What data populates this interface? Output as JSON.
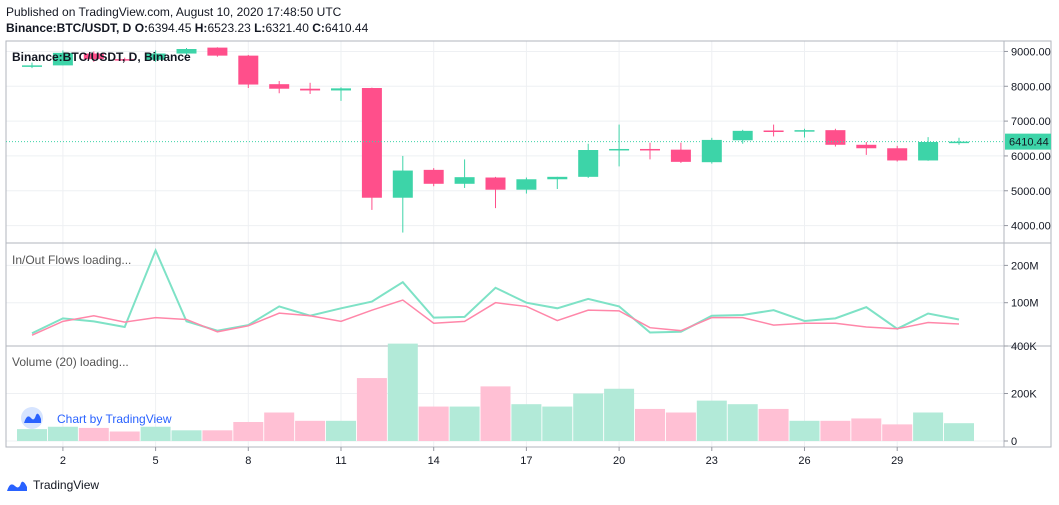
{
  "header": {
    "published": "Published on TradingView.com, August 10, 2020 17:48:50 UTC",
    "symbol": "Binance:BTC/USDT, D",
    "o_label": "O:",
    "o_value": "6394.45",
    "h_label": "H:",
    "h_value": "6523.23",
    "l_label": "L:",
    "l_value": "6321.40",
    "c_label": "C:",
    "c_value": "6410.44"
  },
  "colors": {
    "up": "#3dd4a8",
    "down": "#ff4f8b",
    "up_vol": "#b2ead8",
    "down_vol": "#ffc0d4",
    "flow_up": "#7ee2c6",
    "flow_down": "#ff87a9",
    "grid": "#eef0f3",
    "axis": "#9598a1"
  },
  "chart_data": [
    {
      "type": "candlestick",
      "title": "Binance:BTC/USDT, D, Binance",
      "ylim": [
        3500,
        9300
      ],
      "yticks": [
        "4000.00",
        "5000.00",
        "6000.00",
        "7000.00",
        "8000.00",
        "9000.00"
      ],
      "last_price_label": "6410.44",
      "last_price": 6410.44,
      "x": [
        1,
        2,
        3,
        4,
        5,
        6,
        7,
        8,
        9,
        10,
        11,
        12,
        13,
        14,
        15,
        16,
        17,
        18,
        19,
        20,
        21,
        22,
        23,
        24,
        25,
        26,
        27,
        28,
        29,
        30,
        31
      ],
      "ohlc": [
        [
          8560,
          8680,
          8520,
          8600
        ],
        [
          8600,
          9030,
          8600,
          8960
        ],
        [
          8940,
          9000,
          8700,
          8780
        ],
        [
          8780,
          8820,
          8720,
          8760
        ],
        [
          8760,
          9030,
          8700,
          8940
        ],
        [
          8940,
          9100,
          8900,
          9070
        ],
        [
          9110,
          9120,
          8850,
          8880
        ],
        [
          8880,
          8900,
          7950,
          8050
        ],
        [
          8060,
          8150,
          7800,
          7930
        ],
        [
          7930,
          8100,
          7780,
          7880
        ],
        [
          7880,
          7970,
          7580,
          7940
        ],
        [
          7950,
          7960,
          4450,
          4800
        ],
        [
          4800,
          6000,
          3800,
          5580
        ],
        [
          5600,
          5650,
          5130,
          5200
        ],
        [
          5200,
          5900,
          5080,
          5390
        ],
        [
          5380,
          5400,
          4500,
          5030
        ],
        [
          5030,
          5380,
          4920,
          5330
        ],
        [
          5330,
          5400,
          5050,
          5400
        ],
        [
          5400,
          6350,
          5370,
          6170
        ],
        [
          6200,
          6900,
          5700,
          6200
        ],
        [
          6200,
          6380,
          5900,
          6180
        ],
        [
          6180,
          6380,
          5800,
          5830
        ],
        [
          5820,
          6520,
          5780,
          6460
        ],
        [
          6450,
          6750,
          6350,
          6720
        ],
        [
          6730,
          6900,
          6560,
          6710
        ],
        [
          6700,
          6780,
          6530,
          6740
        ],
        [
          6740,
          6780,
          6270,
          6320
        ],
        [
          6320,
          6400,
          6030,
          6220
        ],
        [
          6220,
          6290,
          5840,
          5870
        ],
        [
          5870,
          6540,
          5860,
          6400
        ],
        [
          6394.45,
          6523.23,
          6321.4,
          6410.44
        ]
      ]
    },
    {
      "type": "line",
      "title": "In/Out Flows loading...",
      "ylim": [
        0,
        260
      ],
      "yticks": [
        "100M",
        "200M"
      ],
      "x": [
        1,
        2,
        3,
        4,
        5,
        6,
        7,
        8,
        9,
        10,
        11,
        12,
        13,
        14,
        15,
        16,
        17,
        18,
        19,
        20,
        21,
        22,
        23,
        24,
        25,
        26,
        27,
        28,
        29,
        30,
        31
      ],
      "series": [
        {
          "values": [
            18,
            58,
            50,
            35,
            240,
            50,
            25,
            40,
            90,
            65,
            85,
            103,
            155,
            60,
            62,
            140,
            100,
            85,
            110,
            90,
            20,
            22,
            65,
            67,
            80,
            51,
            58,
            88,
            30,
            71,
            55
          ]
        },
        {
          "values": [
            13,
            50,
            65,
            48,
            60,
            55,
            22,
            38,
            72,
            65,
            50,
            80,
            107,
            45,
            50,
            100,
            90,
            52,
            80,
            78,
            33,
            25,
            60,
            60,
            40,
            45,
            45,
            35,
            30,
            47,
            43
          ]
        }
      ]
    },
    {
      "type": "bar",
      "title": "Volume (20) loading...",
      "ylim": [
        0,
        400
      ],
      "yticks": [
        "0",
        "200K",
        "400K"
      ],
      "x": [
        1,
        2,
        3,
        4,
        5,
        6,
        7,
        8,
        9,
        10,
        11,
        12,
        13,
        14,
        15,
        16,
        17,
        18,
        19,
        20,
        21,
        22,
        23,
        24,
        25,
        26,
        27,
        28,
        29,
        30,
        31
      ],
      "values": [
        50,
        60,
        55,
        40,
        60,
        45,
        45,
        80,
        120,
        85,
        85,
        265,
        410,
        145,
        145,
        230,
        155,
        145,
        200,
        220,
        135,
        120,
        170,
        155,
        135,
        85,
        85,
        95,
        70,
        120,
        75
      ]
    }
  ],
  "xaxis": {
    "labels": [
      "2",
      "5",
      "8",
      "11",
      "14",
      "17",
      "20",
      "23",
      "26",
      "29"
    ],
    "values": [
      2,
      5,
      8,
      11,
      14,
      17,
      20,
      23,
      26,
      29
    ]
  },
  "watermark": "Chart by TradingView",
  "footer": "TradingView"
}
